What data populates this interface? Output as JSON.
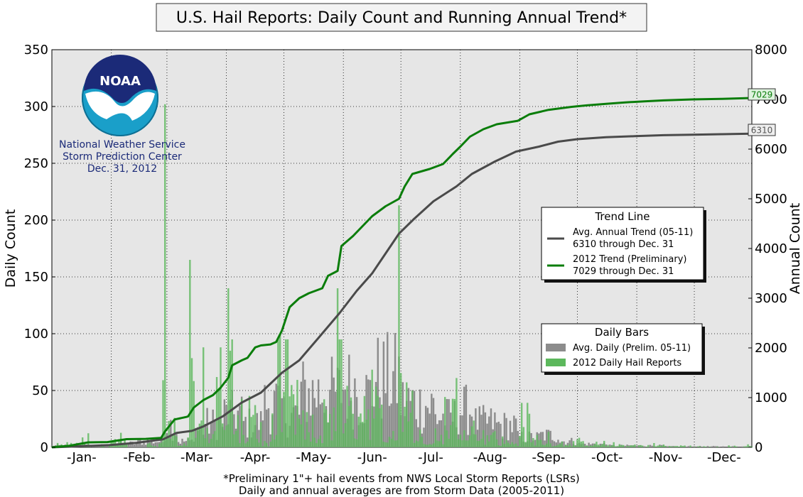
{
  "title": "U.S. Hail Reports: Daily Count and Running Annual Trend*",
  "logo": {
    "text": "NOAA",
    "org_lines": [
      "National Weather Service",
      "Storm Prediction Center",
      "Dec. 31, 2012"
    ]
  },
  "footnote": [
    "*Preliminary 1\"+ hail events from NWS Local Storm Reports (LSRs)",
    "Daily and annual averages are from Storm Data (2005-2011)"
  ],
  "colors": {
    "plot_bg": "#e6e6e6",
    "avg": "#4a4a4a",
    "trend_2012": "#0a7d0a",
    "bar_avg": "#8c8c8c",
    "bar_2012": "#5cb85c"
  },
  "chart_data": {
    "type": "bar",
    "left_axis": {
      "label": "Daily Count",
      "ylim": [
        0,
        350
      ],
      "ticks": [
        0,
        50,
        100,
        150,
        200,
        250,
        300,
        350
      ]
    },
    "right_axis": {
      "label": "Annual Count",
      "ylim": [
        0,
        8000
      ],
      "ticks": [
        0,
        1000,
        2000,
        3000,
        4000,
        5000,
        6000,
        7000,
        8000
      ]
    },
    "x_axis": {
      "day_range": [
        1,
        366
      ],
      "month_labels": [
        "-Jan-",
        "-Feb-",
        "-Mar-",
        "-Apr-",
        "-May-",
        "-Jun-",
        "-Jul-",
        "-Aug-",
        "-Sep-",
        "-Oct-",
        "-Nov-",
        "-Dec-"
      ]
    },
    "grid": true,
    "trend_series": [
      {
        "name": "Avg. Annual Trend (05-11)",
        "legend_detail": "6310 through Dec. 31",
        "end_label": "6310",
        "points": [
          [
            1,
            0
          ],
          [
            15,
            20
          ],
          [
            31,
            45
          ],
          [
            45,
            90
          ],
          [
            59,
            160
          ],
          [
            66,
            290
          ],
          [
            74,
            330
          ],
          [
            80,
            420
          ],
          [
            90,
            620
          ],
          [
            100,
            900
          ],
          [
            110,
            1100
          ],
          [
            121,
            1500
          ],
          [
            130,
            1750
          ],
          [
            140,
            2200
          ],
          [
            151,
            2700
          ],
          [
            160,
            3150
          ],
          [
            168,
            3500
          ],
          [
            175,
            3900
          ],
          [
            182,
            4300
          ],
          [
            190,
            4600
          ],
          [
            200,
            4950
          ],
          [
            212,
            5250
          ],
          [
            220,
            5500
          ],
          [
            232,
            5750
          ],
          [
            243,
            5950
          ],
          [
            255,
            6050
          ],
          [
            265,
            6150
          ],
          [
            275,
            6200
          ],
          [
            290,
            6240
          ],
          [
            305,
            6260
          ],
          [
            320,
            6280
          ],
          [
            335,
            6290
          ],
          [
            350,
            6300
          ],
          [
            366,
            6310
          ]
        ]
      },
      {
        "name": "2012 Trend (Preliminary)",
        "legend_detail": "7029 through Dec. 31",
        "end_label": "7029",
        "points": [
          [
            1,
            0
          ],
          [
            10,
            30
          ],
          [
            20,
            100
          ],
          [
            30,
            105
          ],
          [
            40,
            165
          ],
          [
            50,
            170
          ],
          [
            58,
            190
          ],
          [
            60,
            320
          ],
          [
            65,
            560
          ],
          [
            71,
            610
          ],
          [
            72,
            620
          ],
          [
            75,
            800
          ],
          [
            80,
            950
          ],
          [
            85,
            1050
          ],
          [
            89,
            1200
          ],
          [
            93,
            1400
          ],
          [
            95,
            1650
          ],
          [
            100,
            1750
          ],
          [
            103,
            1800
          ],
          [
            107,
            2010
          ],
          [
            110,
            2050
          ],
          [
            115,
            2070
          ],
          [
            118,
            2120
          ],
          [
            121,
            2350
          ],
          [
            125,
            2820
          ],
          [
            130,
            3000
          ],
          [
            135,
            3100
          ],
          [
            142,
            3200
          ],
          [
            145,
            3450
          ],
          [
            150,
            3550
          ],
          [
            152,
            4050
          ],
          [
            158,
            4250
          ],
          [
            163,
            4450
          ],
          [
            168,
            4650
          ],
          [
            175,
            4850
          ],
          [
            182,
            5000
          ],
          [
            185,
            5250
          ],
          [
            189,
            5500
          ],
          [
            198,
            5600
          ],
          [
            205,
            5700
          ],
          [
            210,
            5900
          ],
          [
            214,
            6050
          ],
          [
            219,
            6250
          ],
          [
            226,
            6400
          ],
          [
            233,
            6500
          ],
          [
            244,
            6570
          ],
          [
            250,
            6700
          ],
          [
            260,
            6790
          ],
          [
            272,
            6850
          ],
          [
            280,
            6880
          ],
          [
            290,
            6910
          ],
          [
            300,
            6940
          ],
          [
            310,
            6960
          ],
          [
            320,
            6980
          ],
          [
            335,
            7000
          ],
          [
            350,
            7010
          ],
          [
            366,
            7029
          ]
        ]
      }
    ],
    "bar_series": [
      {
        "name": "Avg. Daily (Prelim. 05-11)"
      },
      {
        "name": "2012 Daily Hail Reports"
      }
    ],
    "spikes_2012": [
      [
        60,
        302
      ],
      [
        73,
        165
      ],
      [
        80,
        88
      ],
      [
        89,
        88
      ],
      [
        93,
        140
      ],
      [
        120,
        100
      ],
      [
        150,
        140
      ],
      [
        182,
        213
      ]
    ],
    "legends": [
      {
        "title": "Trend Line",
        "placement": "center-right"
      },
      {
        "title": "Daily Bars",
        "placement": "lower-right"
      }
    ]
  }
}
